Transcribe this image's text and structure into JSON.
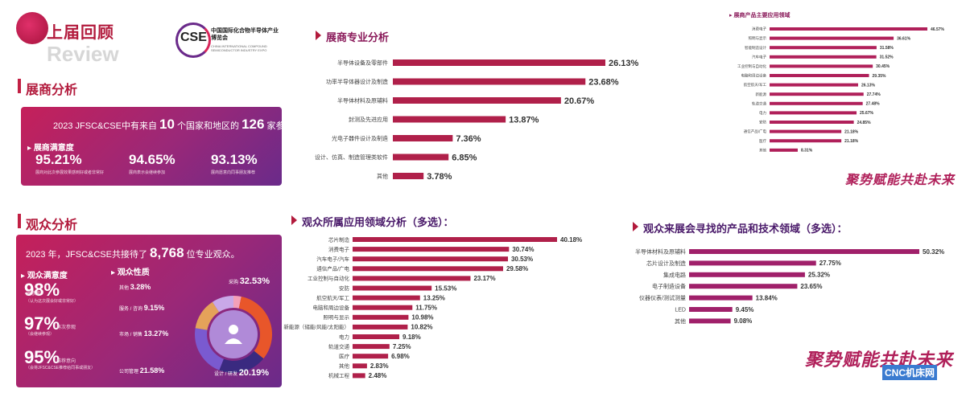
{
  "header": {
    "title": "上届回顾",
    "review": "Review"
  },
  "logo": {
    "abbr": "CSE",
    "cn": "中国国际化合物半导体产业博览会",
    "en": "CHINA INTERNATIONAL COMPOUND SEMICONDUCTOR INDUSTRY EXPO"
  },
  "exhibitor": {
    "title": "展商分析",
    "line_prefix": "2023 JFSC&CSE中有来自",
    "countries": "10",
    "line_mid": "个国家和地区的",
    "companies": "126",
    "line_suffix": "家参展商。",
    "sat_title": "展商满意度",
    "stats": [
      {
        "value": "95.21%",
        "desc": "展商对此次参展效果感到好或者非常好"
      },
      {
        "value": "94.65%",
        "desc": "展商表示会继续参加"
      },
      {
        "value": "93.13%",
        "desc": "展商愿意向同事朋友推荐"
      }
    ]
  },
  "audience": {
    "title": "观众分析",
    "line_prefix": "2023 年，JFSC&CSE共接待了",
    "count": "8,768",
    "line_suffix": "位专业观众。",
    "sat_title": "观众满意度",
    "stats": [
      {
        "value": "98%",
        "label": "满意度",
        "desc": "（认为这次展会好或非常好）"
      },
      {
        "value": "97%",
        "label": "再次参观",
        "desc": "（会继续参观）"
      },
      {
        "value": "95%",
        "label": "推荐意向",
        "desc": "（会将JFSC&CSE推荐给同事或朋友）"
      }
    ],
    "nature_title": "观众性质",
    "nature": [
      {
        "label": "其他",
        "value": "3.28%",
        "pct": 3.28,
        "color": "#f4a0b8"
      },
      {
        "label": "采购",
        "value": "32.53%",
        "pct": 32.53,
        "color": "#e8562a"
      },
      {
        "label": "设计 / 研发",
        "value": "20.19%",
        "pct": 20.19,
        "color": "#3a2a80"
      },
      {
        "label": "公司管理",
        "value": "21.58%",
        "pct": 21.58,
        "color": "#7a5ad0"
      },
      {
        "label": "市场 / 销售",
        "value": "13.27%",
        "pct": 13.27,
        "color": "#e5a25a"
      },
      {
        "label": "服务 / 咨询",
        "value": "9.15%",
        "pct": 9.15,
        "color": "#c9a8e8"
      }
    ]
  },
  "chart_data": [
    {
      "type": "bar",
      "orientation": "horizontal",
      "title": "展商专业分析",
      "categories": [
        "半导体设备及零部件",
        "功率半导体器设计及制造",
        "半导体材料及原辅料",
        "封测及先进应用",
        "光电子器件设计及制造",
        "设计、仿真、制造管理类软件",
        "其他"
      ],
      "values": [
        26.13,
        23.68,
        20.67,
        13.87,
        7.36,
        6.85,
        3.78
      ],
      "labels": [
        "26.13%",
        "23.68%",
        "20.67%",
        "13.87%",
        "7.36%",
        "6.85%",
        "3.78%"
      ],
      "color": "#b0204a"
    },
    {
      "type": "bar",
      "orientation": "horizontal",
      "title": "展商产品主要应用领域",
      "categories": [
        "消费电子",
        "照明与显示",
        "智能制造设计",
        "汽车电子",
        "工业控制与自动化",
        "电脑和周边设备",
        "航空航天/军工",
        "新能源",
        "轨道交通",
        "电力",
        "安防",
        "通信产品/广电",
        "医疗",
        "其他"
      ],
      "values": [
        46.57,
        36.61,
        31.58,
        31.52,
        30.45,
        29.35,
        26.13,
        27.74,
        27.48,
        25.67,
        24.85,
        21.18,
        21.18,
        8.31
      ],
      "labels": [
        "46.57%",
        "36.61%",
        "31.58%",
        "31.52%",
        "30.45%",
        "29.35%",
        "26.13%",
        "27.74%",
        "27.48%",
        "25.67%",
        "24.85%",
        "21.18%",
        "21.18%",
        "8.31%"
      ],
      "color": "#b0205a"
    },
    {
      "type": "bar",
      "orientation": "horizontal",
      "title": "观众所属应用领域分析（多选）：",
      "categories": [
        "芯片制造",
        "消费电子",
        "汽车电子/汽车",
        "通信产品/广电",
        "工业控制与自动化",
        "安防",
        "航空航天/军工",
        "电脑和周边设备",
        "照明与显示",
        "新能源（储能/风能/太阳能）",
        "电力",
        "轨道交通",
        "医疗",
        "其他",
        "机械工程"
      ],
      "values": [
        40.18,
        30.74,
        30.53,
        29.58,
        23.17,
        15.53,
        13.25,
        11.75,
        10.98,
        10.82,
        9.18,
        7.25,
        6.98,
        2.83,
        2.48
      ],
      "labels": [
        "40.18%",
        "30.74%",
        "30.53%",
        "29.58%",
        "23.17%",
        "15.53%",
        "13.25%",
        "11.75%",
        "10.98%",
        "10.82%",
        "9.18%",
        "7.25%",
        "6.98%",
        "2.83%",
        "2.48%"
      ],
      "color": "#b0204a"
    },
    {
      "type": "bar",
      "orientation": "horizontal",
      "title": "观众来展会寻找的产品和技术领域（多选）：",
      "categories": [
        "半导体材料及原辅料",
        "芯片设计及制造",
        "集成电路",
        "电子制造设备",
        "仪器仪表/测试测量",
        "LED",
        "其他"
      ],
      "values": [
        50.32,
        27.75,
        25.32,
        23.65,
        13.84,
        9.45,
        9.08
      ],
      "labels": [
        "50.32%",
        "27.75%",
        "25.32%",
        "23.65%",
        "13.84%",
        "9.45%",
        "9.08%"
      ],
      "color": "#a0206a"
    }
  ],
  "slogan": "聚势赋能共赴未来",
  "watermark": "CNC机床网"
}
